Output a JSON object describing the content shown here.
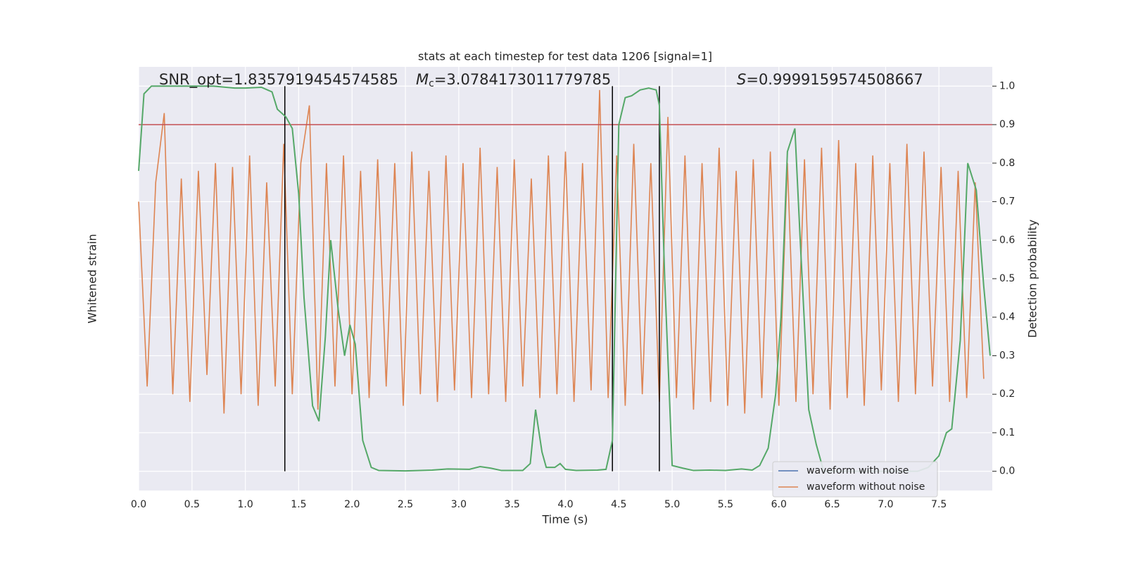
{
  "chart_data": {
    "type": "line",
    "title": "stats at each timestep for test data 1206 [signal=1]",
    "xlabel": "Time (s)",
    "ylabel": "Whitened strain",
    "y2label": "Detection probability",
    "annotations": [
      {
        "parts": [
          "SNR_opt=1.8357919454574585"
        ],
        "styles": [
          "normal"
        ]
      },
      {
        "parts": [
          "M",
          "c",
          "=3.0784173011779785"
        ],
        "styles": [
          "italic",
          "sub",
          "normal"
        ]
      },
      {
        "parts": [
          "S",
          "=0.9999159574508667"
        ],
        "styles": [
          "italic",
          "normal"
        ]
      }
    ],
    "xlim": [
      0,
      8
    ],
    "xticks": [
      {
        "value": 0,
        "label": "0.0"
      },
      {
        "value": 0.5,
        "label": "0.5"
      },
      {
        "value": 1,
        "label": "1.0"
      },
      {
        "value": 1.5,
        "label": "1.5"
      },
      {
        "value": 2,
        "label": "2.0"
      },
      {
        "value": 2.5,
        "label": "2.5"
      },
      {
        "value": 3,
        "label": "3.0"
      },
      {
        "value": 3.5,
        "label": "3.5"
      },
      {
        "value": 4,
        "label": "4.0"
      },
      {
        "value": 4.5,
        "label": "4.5"
      },
      {
        "value": 5,
        "label": "5.0"
      },
      {
        "value": 5.5,
        "label": "5.5"
      },
      {
        "value": 6,
        "label": "6.0"
      },
      {
        "value": 6.5,
        "label": "6.5"
      },
      {
        "value": 7,
        "label": "7.0"
      },
      {
        "value": 7.5,
        "label": "7.5"
      }
    ],
    "y2lim": [
      -0.05,
      1.05
    ],
    "y2ticks": [
      {
        "value": 0,
        "label": "0.0"
      },
      0.1,
      0.2,
      0.3,
      0.4,
      0.5,
      0.6,
      0.7,
      0.8,
      0.9,
      {
        "value": 1,
        "label": "1.0"
      }
    ],
    "grid": true,
    "legend": "lower right",
    "threshold": {
      "value": 0.9,
      "color": "#c44e52"
    },
    "vlines": {
      "values": [
        1.37,
        4.44,
        4.88
      ],
      "color": "#000000",
      "ymin": 0,
      "ymax": 1
    },
    "series": [
      {
        "name": "waveform with noise",
        "color": "#4c72b0"
      },
      {
        "name": "waveform without noise",
        "color": "#dd8452",
        "axis": "y2",
        "x": [
          0,
          0.08,
          0.16,
          0.24,
          0.32,
          0.4,
          0.48,
          0.56,
          0.64,
          0.72,
          0.8,
          0.88,
          0.96,
          1.04,
          1.12,
          1.2,
          1.28,
          1.36,
          1.44,
          1.52,
          1.6,
          1.68,
          1.76,
          1.84,
          1.92,
          2,
          2.08,
          2.16,
          2.24,
          2.32,
          2.4,
          2.48,
          2.56,
          2.64,
          2.72,
          2.8,
          2.88,
          2.96,
          3.04,
          3.12,
          3.2,
          3.28,
          3.36,
          3.44,
          3.52,
          3.6,
          3.68,
          3.76,
          3.84,
          3.92,
          4,
          4.08,
          4.16,
          4.24,
          4.32,
          4.4,
          4.48,
          4.56,
          4.64,
          4.72,
          4.8,
          4.88,
          4.96,
          5.04,
          5.12,
          5.2,
          5.28,
          5.36,
          5.44,
          5.52,
          5.6,
          5.68,
          5.76,
          5.84,
          5.92,
          6,
          6.08,
          6.16,
          6.24,
          6.32,
          6.4,
          6.48,
          6.56,
          6.64,
          6.72,
          6.8,
          6.88,
          6.96,
          7.04,
          7.12,
          7.2,
          7.28,
          7.36,
          7.44,
          7.52,
          7.6,
          7.68,
          7.76,
          7.84,
          7.92
        ],
        "values": [
          0.7,
          0.22,
          0.75,
          0.93,
          0.2,
          0.76,
          0.18,
          0.78,
          0.25,
          0.8,
          0.15,
          0.79,
          0.2,
          0.82,
          0.17,
          0.75,
          0.22,
          0.85,
          0.2,
          0.8,
          0.95,
          0.16,
          0.8,
          0.22,
          0.82,
          0.2,
          0.78,
          0.19,
          0.81,
          0.22,
          0.8,
          0.17,
          0.83,
          0.2,
          0.78,
          0.18,
          0.82,
          0.21,
          0.8,
          0.19,
          0.84,
          0.2,
          0.79,
          0.18,
          0.81,
          0.22,
          0.76,
          0.19,
          0.82,
          0.2,
          0.83,
          0.18,
          0.8,
          0.21,
          0.99,
          0.19,
          0.82,
          0.17,
          0.85,
          0.2,
          0.8,
          0.18,
          0.92,
          0.19,
          0.82,
          0.16,
          0.8,
          0.18,
          0.84,
          0.17,
          0.78,
          0.15,
          0.81,
          0.19,
          0.83,
          0.17,
          0.8,
          0.18,
          0.81,
          0.2,
          0.84,
          0.16,
          0.86,
          0.19,
          0.8,
          0.17,
          0.82,
          0.21,
          0.8,
          0.18,
          0.85,
          0.2,
          0.83,
          0.22,
          0.79,
          0.18,
          0.78,
          0.19,
          0.75,
          0.24
        ]
      }
    ],
    "detection": {
      "color": "#55a868",
      "axis": "y2",
      "x": [
        0,
        0.05,
        0.12,
        0.3,
        0.5,
        0.7,
        0.9,
        1,
        1.15,
        1.25,
        1.3,
        1.38,
        1.44,
        1.5,
        1.55,
        1.63,
        1.69,
        1.75,
        1.8,
        1.87,
        1.93,
        1.98,
        2.03,
        2.1,
        2.18,
        2.25,
        2.5,
        2.75,
        2.9,
        3.1,
        3.2,
        3.3,
        3.4,
        3.6,
        3.67,
        3.72,
        3.78,
        3.82,
        3.9,
        3.95,
        4,
        4.1,
        4.3,
        4.38,
        4.44,
        4.5,
        4.56,
        4.62,
        4.7,
        4.78,
        4.85,
        4.88,
        4.93,
        5,
        5.1,
        5.2,
        5.35,
        5.5,
        5.65,
        5.75,
        5.82,
        5.9,
        5.97,
        6.02,
        6.08,
        6.15,
        6.2,
        6.28,
        6.35,
        6.42,
        6.6,
        7.3,
        7.4,
        7.5,
        7.57,
        7.62,
        7.7,
        7.77,
        7.85,
        7.92,
        7.98
      ],
      "values": [
        0.78,
        0.98,
        1.0,
        1.0,
        1.0,
        1.0,
        0.995,
        0.995,
        0.997,
        0.985,
        0.94,
        0.92,
        0.89,
        0.72,
        0.45,
        0.17,
        0.13,
        0.35,
        0.6,
        0.42,
        0.3,
        0.38,
        0.33,
        0.08,
        0.01,
        0.002,
        0.001,
        0.003,
        0.006,
        0.005,
        0.012,
        0.008,
        0.002,
        0.002,
        0.02,
        0.16,
        0.05,
        0.01,
        0.01,
        0.02,
        0.005,
        0.002,
        0.003,
        0.005,
        0.08,
        0.9,
        0.97,
        0.975,
        0.99,
        0.995,
        0.99,
        0.95,
        0.5,
        0.015,
        0.008,
        0.002,
        0.003,
        0.002,
        0.006,
        0.003,
        0.015,
        0.06,
        0.2,
        0.4,
        0.83,
        0.89,
        0.6,
        0.16,
        0.07,
        0,
        0,
        0,
        0.01,
        0.04,
        0.1,
        0.11,
        0.34,
        0.8,
        0.73,
        0.48,
        0.3
      ]
    }
  }
}
